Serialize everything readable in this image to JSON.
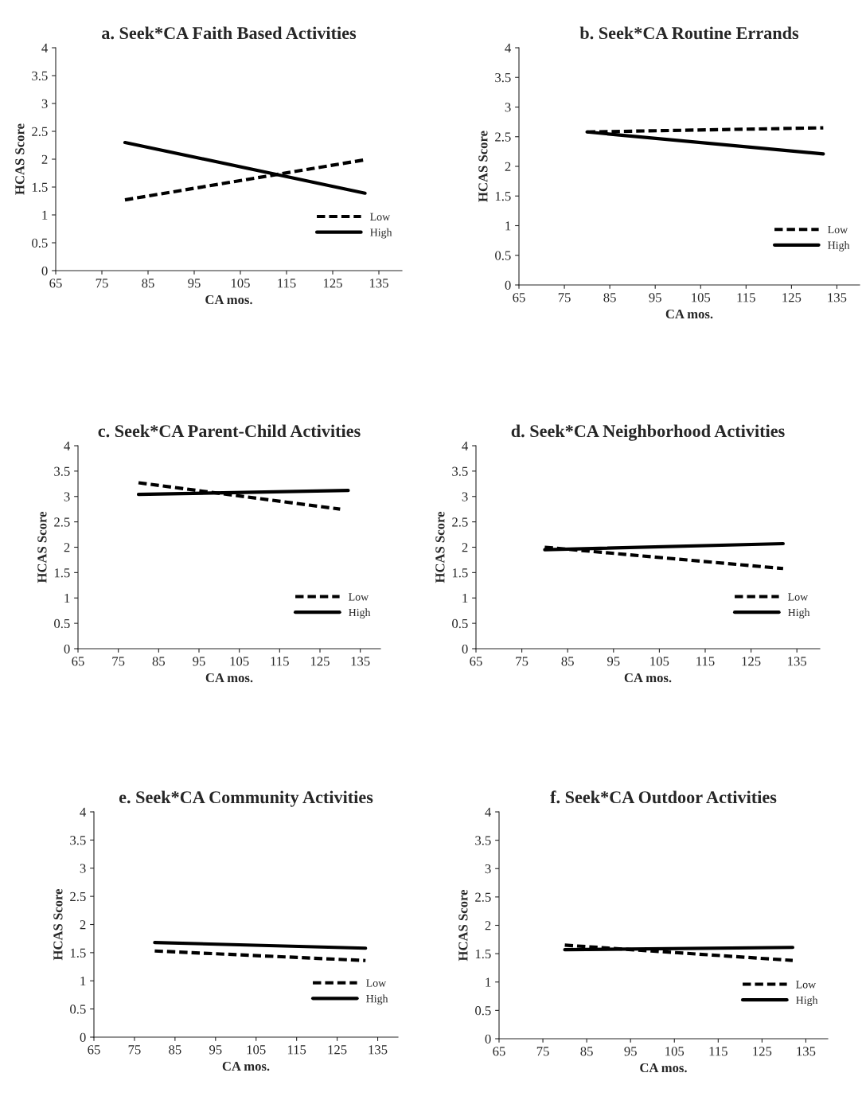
{
  "chart_data": [
    {
      "type": "line",
      "title": "a. Seek*CA Faith Based Activities",
      "xlabel": "CA mos.",
      "ylabel": "HCAS Score",
      "xlim": [
        65,
        140
      ],
      "ylim": [
        0,
        4
      ],
      "xticks": [
        65,
        75,
        85,
        95,
        105,
        115,
        125,
        135
      ],
      "yticks": [
        0,
        0.5,
        1,
        1.5,
        2,
        2.5,
        3,
        3.5,
        4
      ],
      "grid": false,
      "legend": "bottom right",
      "marker": "none",
      "series": [
        {
          "name": "Low",
          "color": "#000000",
          "line_style": "dashed",
          "x": [
            80,
            132
          ],
          "values": [
            1.27,
            1.99
          ]
        },
        {
          "name": "High",
          "color": "#000000",
          "line_style": "solid",
          "x": [
            80,
            132
          ],
          "values": [
            2.3,
            1.39
          ]
        }
      ]
    },
    {
      "type": "line",
      "title": "b. Seek*CA Routine Errands",
      "xlabel": "CA mos.",
      "ylabel": "HCAS Score",
      "xlim": [
        65,
        140
      ],
      "ylim": [
        0,
        4
      ],
      "xticks": [
        65,
        75,
        85,
        95,
        105,
        115,
        125,
        135
      ],
      "yticks": [
        0,
        0.5,
        1,
        1.5,
        2,
        2.5,
        3,
        3.5,
        4
      ],
      "grid": false,
      "legend": "bottom right",
      "marker": "none",
      "series": [
        {
          "name": "Low",
          "color": "#000000",
          "line_style": "dashed",
          "x": [
            80,
            132
          ],
          "values": [
            2.58,
            2.65
          ]
        },
        {
          "name": "High",
          "color": "#000000",
          "line_style": "solid",
          "x": [
            80,
            132
          ],
          "values": [
            2.58,
            2.21
          ]
        }
      ]
    },
    {
      "type": "line",
      "title": "c. Seek*CA Parent-Child Activities",
      "xlabel": "CA mos.",
      "ylabel": "HCAS Score",
      "xlim": [
        65,
        140
      ],
      "ylim": [
        0,
        4
      ],
      "xticks": [
        65,
        75,
        85,
        95,
        105,
        115,
        125,
        135
      ],
      "yticks": [
        0,
        0.5,
        1,
        1.5,
        2,
        2.5,
        3,
        3.5,
        4
      ],
      "grid": false,
      "legend": "bottom right",
      "marker": "none",
      "series": [
        {
          "name": "Low",
          "color": "#000000",
          "line_style": "dashed",
          "x": [
            80,
            130
          ],
          "values": [
            3.27,
            2.75
          ]
        },
        {
          "name": "High",
          "color": "#000000",
          "line_style": "solid",
          "x": [
            80,
            132
          ],
          "values": [
            3.04,
            3.12
          ]
        }
      ]
    },
    {
      "type": "line",
      "title": "d. Seek*CA Neighborhood Activities",
      "xlabel": "CA mos.",
      "ylabel": "HCAS Score",
      "xlim": [
        65,
        140
      ],
      "ylim": [
        0,
        4
      ],
      "xticks": [
        65,
        75,
        85,
        95,
        105,
        115,
        125,
        135
      ],
      "yticks": [
        0,
        0.5,
        1,
        1.5,
        2,
        2.5,
        3,
        3.5,
        4
      ],
      "grid": false,
      "legend": "bottom right",
      "marker": "none",
      "series": [
        {
          "name": "Low",
          "color": "#000000",
          "line_style": "dashed",
          "x": [
            80,
            132
          ],
          "values": [
            2.0,
            1.58
          ]
        },
        {
          "name": "High",
          "color": "#000000",
          "line_style": "solid",
          "x": [
            80,
            132
          ],
          "values": [
            1.95,
            2.07
          ]
        }
      ]
    },
    {
      "type": "line",
      "title": "e. Seek*CA Community Activities",
      "xlabel": "CA mos.",
      "ylabel": "HCAS Score",
      "xlim": [
        65,
        140
      ],
      "ylim": [
        0,
        4
      ],
      "xticks": [
        65,
        75,
        85,
        95,
        105,
        115,
        125,
        135
      ],
      "yticks": [
        0,
        0.5,
        1,
        1.5,
        2,
        2.5,
        3,
        3.5,
        4
      ],
      "grid": false,
      "legend": "bottom right",
      "marker": "none",
      "series": [
        {
          "name": "Low",
          "color": "#000000",
          "line_style": "dashed",
          "x": [
            80,
            132
          ],
          "values": [
            1.53,
            1.36
          ]
        },
        {
          "name": "High",
          "color": "#000000",
          "line_style": "solid",
          "x": [
            80,
            132
          ],
          "values": [
            1.68,
            1.58
          ]
        }
      ]
    },
    {
      "type": "line",
      "title": "f. Seek*CA Outdoor Activities",
      "xlabel": "CA mos.",
      "ylabel": "HCAS Score",
      "xlim": [
        65,
        140
      ],
      "ylim": [
        0,
        4
      ],
      "xticks": [
        65,
        75,
        85,
        95,
        105,
        115,
        125,
        135
      ],
      "yticks": [
        0,
        0.5,
        1,
        1.5,
        2,
        2.5,
        3,
        3.5,
        4
      ],
      "grid": false,
      "legend": "bottom right",
      "marker": "none",
      "series": [
        {
          "name": "Low",
          "color": "#000000",
          "line_style": "dashed",
          "x": [
            80,
            132
          ],
          "values": [
            1.65,
            1.38
          ]
        },
        {
          "name": "High",
          "color": "#000000",
          "line_style": "solid",
          "x": [
            80,
            132
          ],
          "values": [
            1.57,
            1.61
          ]
        }
      ]
    }
  ]
}
